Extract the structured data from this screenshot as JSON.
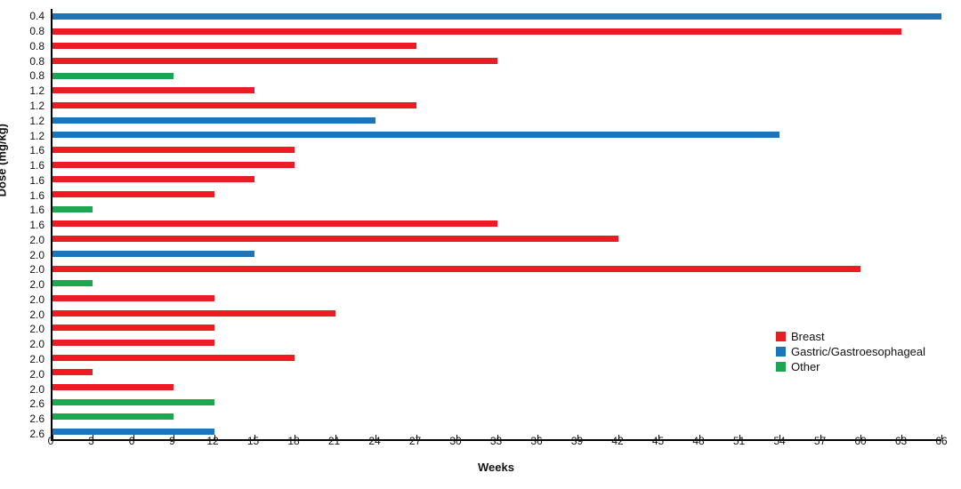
{
  "chart_data": {
    "type": "bar",
    "orientation": "horizontal",
    "xlabel": "Weeks",
    "ylabel": "Dose (mg/kg)",
    "xlim": [
      0,
      66
    ],
    "xtick_step": 3,
    "grid": false,
    "legend_position": "right-middle",
    "colors": {
      "Breast": "#EC1C24",
      "Gastric/Gastroesophageal": "#1C75BB",
      "Other": "#1CA64F"
    },
    "legend": [
      {
        "name": "Breast",
        "color": "#EC1C24"
      },
      {
        "name": "Gastric/Gastroesophageal",
        "color": "#1C75BB"
      },
      {
        "name": "Other",
        "color": "#1CA64F"
      }
    ],
    "bars": [
      {
        "dose": "0.4",
        "group": "Gastric/Gastroesophageal",
        "weeks": 66
      },
      {
        "dose": "0.8",
        "group": "Breast",
        "weeks": 63
      },
      {
        "dose": "0.8",
        "group": "Breast",
        "weeks": 27
      },
      {
        "dose": "0.8",
        "group": "Breast",
        "weeks": 33
      },
      {
        "dose": "0.8",
        "group": "Other",
        "weeks": 9
      },
      {
        "dose": "1.2",
        "group": "Breast",
        "weeks": 15
      },
      {
        "dose": "1.2",
        "group": "Breast",
        "weeks": 27
      },
      {
        "dose": "1.2",
        "group": "Gastric/Gastroesophageal",
        "weeks": 24
      },
      {
        "dose": "1.2",
        "group": "Gastric/Gastroesophageal",
        "weeks": 54
      },
      {
        "dose": "1.6",
        "group": "Breast",
        "weeks": 18
      },
      {
        "dose": "1.6",
        "group": "Breast",
        "weeks": 18
      },
      {
        "dose": "1.6",
        "group": "Breast",
        "weeks": 15
      },
      {
        "dose": "1.6",
        "group": "Breast",
        "weeks": 12
      },
      {
        "dose": "1.6",
        "group": "Other",
        "weeks": 3
      },
      {
        "dose": "1.6",
        "group": "Breast",
        "weeks": 33
      },
      {
        "dose": "2.0",
        "group": "Breast",
        "weeks": 42
      },
      {
        "dose": "2.0",
        "group": "Gastric/Gastroesophageal",
        "weeks": 15
      },
      {
        "dose": "2.0",
        "group": "Breast",
        "weeks": 60
      },
      {
        "dose": "2.0",
        "group": "Other",
        "weeks": 3
      },
      {
        "dose": "2.0",
        "group": "Breast",
        "weeks": 12
      },
      {
        "dose": "2.0",
        "group": "Breast",
        "weeks": 21
      },
      {
        "dose": "2.0",
        "group": "Breast",
        "weeks": 12
      },
      {
        "dose": "2.0",
        "group": "Breast",
        "weeks": 12
      },
      {
        "dose": "2.0",
        "group": "Breast",
        "weeks": 18
      },
      {
        "dose": "2.0",
        "group": "Breast",
        "weeks": 3
      },
      {
        "dose": "2.0",
        "group": "Breast",
        "weeks": 9
      },
      {
        "dose": "2.6",
        "group": "Other",
        "weeks": 12
      },
      {
        "dose": "2.6",
        "group": "Other",
        "weeks": 9
      },
      {
        "dose": "2.6",
        "group": "Gastric/Gastroesophageal",
        "weeks": 12
      }
    ]
  }
}
